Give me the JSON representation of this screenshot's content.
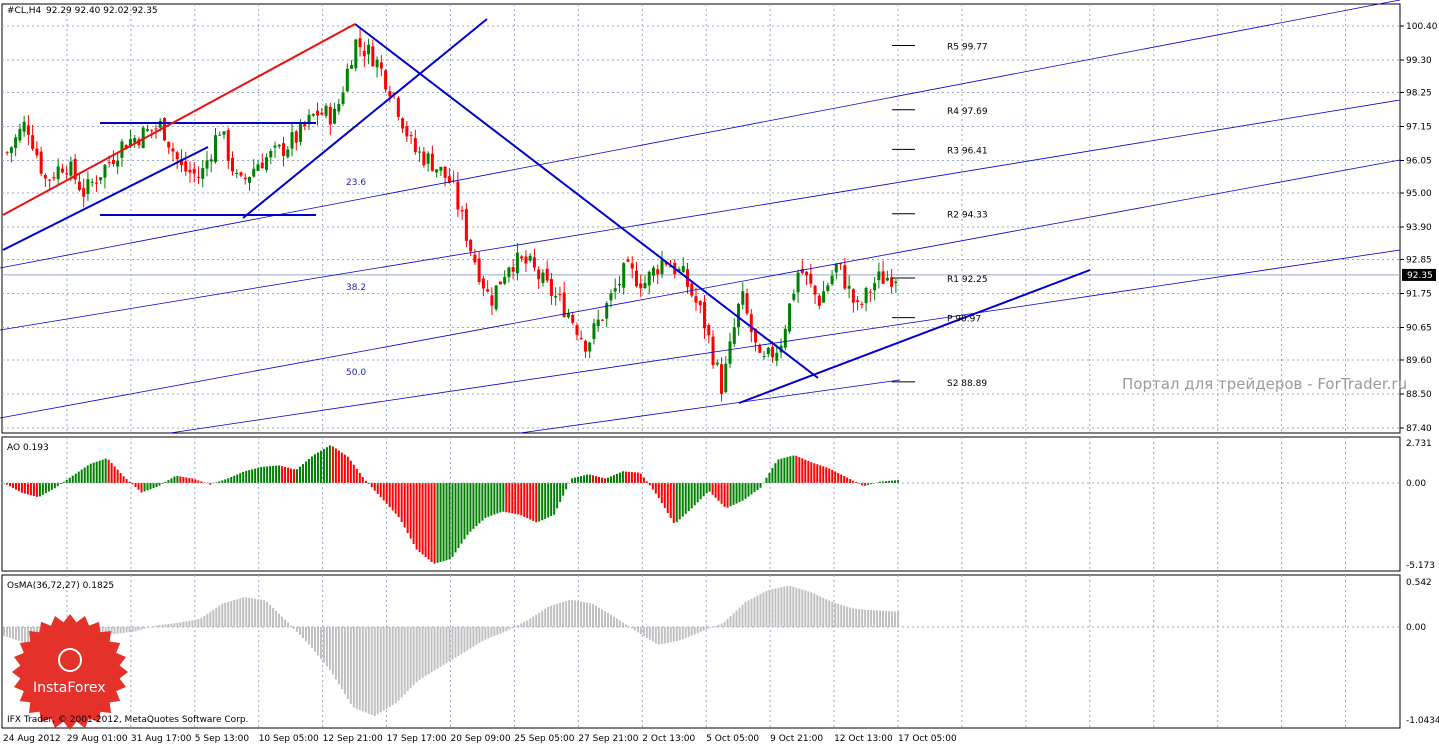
{
  "header": {
    "symbol_label": "#CL,H4",
    "ohlc_text": "92.29 92.40 92.02 92.35"
  },
  "colors": {
    "up": "#008000",
    "down": "#ff0000",
    "trend": "#0000cd",
    "resistance": "#e81010",
    "grid": "#9aa7c7",
    "hist_osma": "#c0c0c0",
    "price_line": "#9aa7c7"
  },
  "watermark": "Портал для трейдеров - ForTrader.ru",
  "copyright": "IFX Trader, © 2001-2012, MetaQuotes Software Corp.",
  "logo_text": "InstaForex",
  "chart_data": [
    {
      "type": "candlestick",
      "title": "#CL,H4",
      "ylim": [
        87.4,
        100.4
      ],
      "y_ticks": [
        "100.40",
        "99.30",
        "98.25",
        "97.15",
        "96.05",
        "95.00",
        "93.90",
        "92.85",
        "91.75",
        "90.65",
        "89.60",
        "88.50",
        "87.40"
      ],
      "current_price": "92.35",
      "x_ticks": [
        "24 Aug 2012",
        "29 Aug 01:00",
        "31 Aug 17:00",
        "5 Sep 13:00",
        "10 Sep 05:00",
        "12 Sep 21:00",
        "17 Sep 17:00",
        "20 Sep 09:00",
        "25 Sep 05:00",
        "27 Sep 21:00",
        "2 Oct 13:00",
        "5 Oct 05:00",
        "9 Oct 21:00",
        "12 Oct 13:00",
        "17 Oct 05:00"
      ],
      "close_path": [
        96.3,
        97.3,
        95.4,
        96.0,
        95.0,
        95.8,
        96.6,
        96.9,
        97.2,
        95.8,
        95.5,
        97.1,
        95.2,
        96.0,
        96.3,
        96.8,
        97.6,
        97.5,
        99.9,
        99.4,
        98.2,
        96.4,
        96.0,
        95.3,
        93.2,
        91.5,
        92.8,
        92.7,
        91.9,
        91.2,
        90.1,
        91.3,
        92.5,
        92.1,
        92.9,
        92.3,
        91.0,
        88.7,
        91.7,
        89.4,
        90.1,
        92.6,
        91.5,
        92.7,
        91.2,
        92.2,
        92.35
      ],
      "pivots": [
        {
          "label": "R5",
          "value": "99.77"
        },
        {
          "label": "R4",
          "value": "97.69"
        },
        {
          "label": "R3",
          "value": "96.41"
        },
        {
          "label": "R2",
          "value": "94.33"
        },
        {
          "label": "R1",
          "value": "92.25"
        },
        {
          "label": "P",
          "value": "90.97"
        },
        {
          "label": "S2",
          "value": "88.89"
        }
      ],
      "fib_levels": [
        "23.6",
        "38.2",
        "50.0"
      ]
    },
    {
      "type": "histogram",
      "title": "AO 0.193",
      "y_ticks": [
        "2.731",
        "0.00",
        "-5.173"
      ],
      "ylim": [
        -5.173,
        2.731
      ],
      "wave": [
        0.0,
        -0.6,
        -0.9,
        -0.3,
        0.5,
        1.3,
        1.7,
        0.4,
        -0.6,
        -0.2,
        0.5,
        0.3,
        -0.1,
        0.3,
        0.8,
        1.1,
        1.2,
        0.9,
        1.9,
        2.6,
        1.8,
        0.2,
        -1.0,
        -2.2,
        -4.2,
        -5.1,
        -4.8,
        -3.2,
        -2.2,
        -1.8,
        -2.0,
        -2.5,
        -2.0,
        0.3,
        0.6,
        0.3,
        0.8,
        0.7,
        -0.8,
        -2.6,
        -1.6,
        -0.5,
        -1.6,
        -1.1,
        -0.3,
        1.6,
        1.9,
        1.4,
        1.0,
        0.4,
        -0.2,
        0.1,
        0.193
      ]
    },
    {
      "type": "histogram",
      "title": "OsMA(36,72,27) 0.1825",
      "y_ticks": [
        "0.542",
        "0.00",
        "-1.0434"
      ],
      "ylim": [
        -1.0434,
        0.542
      ],
      "wave": [
        -0.1,
        -0.18,
        -0.2,
        -0.1,
        -0.06,
        -0.08,
        -0.05,
        0.02,
        0.05,
        0.1,
        0.28,
        0.36,
        0.32,
        0.06,
        -0.2,
        -0.5,
        -0.9,
        -1.0,
        -0.85,
        -0.6,
        -0.45,
        -0.3,
        -0.15,
        -0.05,
        0.08,
        0.25,
        0.33,
        0.28,
        0.12,
        -0.05,
        -0.2,
        -0.15,
        -0.05,
        0.05,
        0.3,
        0.44,
        0.5,
        0.42,
        0.3,
        0.22,
        0.2,
        0.1825
      ]
    }
  ]
}
